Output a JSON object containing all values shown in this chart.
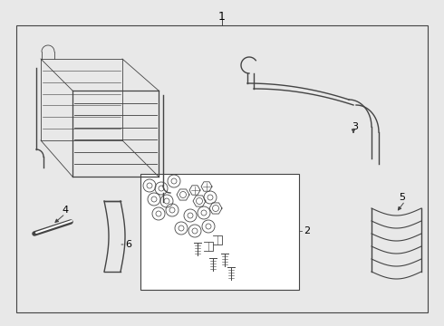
{
  "bg_color": "#e8e8e8",
  "line_color": "#444444",
  "label_color": "#000000",
  "fig_width": 4.9,
  "fig_height": 3.6,
  "dpi": 100
}
